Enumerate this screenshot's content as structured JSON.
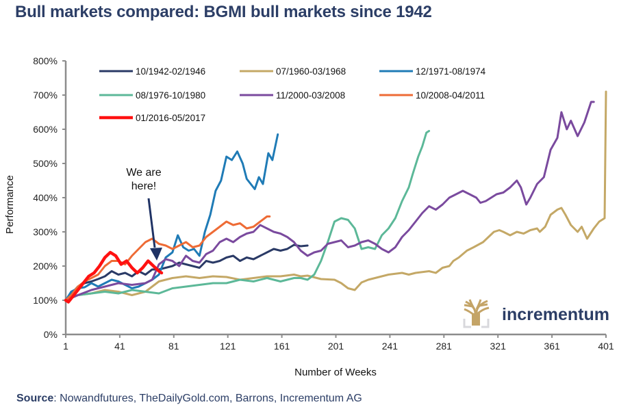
{
  "header": {
    "title": "Bull markets compared: BGMI bull markets since 1942"
  },
  "source": {
    "label": "Source",
    "text": ": Nowandfutures, TheDailyGold.com, Barrons, Incrementum AG"
  },
  "logo": {
    "text": "incrementum",
    "icon": "tree-icon",
    "color": "#c4a467"
  },
  "annotation": {
    "line1": "We are",
    "line2": "here!",
    "arrow_color": "#1f3264",
    "points_to_week": 68,
    "points_to_value": 205
  },
  "chart_data": {
    "type": "line",
    "title": "Bull markets compared: BGMI bull markets since 1942",
    "xlabel": "Number of Weeks",
    "ylabel": "Performance",
    "xlim": [
      1,
      401
    ],
    "ylim": [
      0,
      800
    ],
    "x_ticks": [
      1,
      41,
      81,
      121,
      161,
      201,
      241,
      281,
      321,
      361,
      401
    ],
    "y_ticks": [
      0,
      100,
      200,
      300,
      400,
      500,
      600,
      700,
      800
    ],
    "y_tick_labels": [
      "0%",
      "100%",
      "200%",
      "300%",
      "400%",
      "500%",
      "600%",
      "700%",
      "800%"
    ],
    "grid": false,
    "legend": "top-left",
    "series": [
      {
        "name": "10/1942-02/1946",
        "color": "#2a3a66",
        "points": [
          [
            1,
            100
          ],
          [
            5,
            118
          ],
          [
            10,
            140
          ],
          [
            15,
            150
          ],
          [
            20,
            155
          ],
          [
            25,
            162
          ],
          [
            30,
            170
          ],
          [
            35,
            185
          ],
          [
            40,
            175
          ],
          [
            45,
            180
          ],
          [
            50,
            170
          ],
          [
            55,
            185
          ],
          [
            60,
            175
          ],
          [
            65,
            190
          ],
          [
            70,
            190
          ],
          [
            75,
            195
          ],
          [
            80,
            200
          ],
          [
            85,
            210
          ],
          [
            90,
            205
          ],
          [
            95,
            200
          ],
          [
            100,
            195
          ],
          [
            105,
            215
          ],
          [
            110,
            210
          ],
          [
            115,
            215
          ],
          [
            120,
            225
          ],
          [
            125,
            230
          ],
          [
            130,
            215
          ],
          [
            135,
            225
          ],
          [
            140,
            220
          ],
          [
            145,
            230
          ],
          [
            150,
            240
          ],
          [
            155,
            250
          ],
          [
            160,
            245
          ],
          [
            165,
            250
          ],
          [
            170,
            262
          ],
          [
            175,
            258
          ],
          [
            180,
            260
          ]
        ]
      },
      {
        "name": "07/1960-03/1968",
        "color": "#c4a866",
        "points": [
          [
            1,
            100
          ],
          [
            10,
            115
          ],
          [
            20,
            120
          ],
          [
            30,
            130
          ],
          [
            40,
            125
          ],
          [
            50,
            115
          ],
          [
            60,
            125
          ],
          [
            70,
            155
          ],
          [
            80,
            165
          ],
          [
            90,
            170
          ],
          [
            100,
            165
          ],
          [
            110,
            170
          ],
          [
            120,
            168
          ],
          [
            130,
            160
          ],
          [
            140,
            165
          ],
          [
            150,
            170
          ],
          [
            160,
            170
          ],
          [
            170,
            175
          ],
          [
            175,
            170
          ],
          [
            180,
            172
          ],
          [
            190,
            162
          ],
          [
            200,
            160
          ],
          [
            205,
            150
          ],
          [
            210,
            135
          ],
          [
            215,
            130
          ],
          [
            220,
            152
          ],
          [
            225,
            160
          ],
          [
            230,
            165
          ],
          [
            240,
            175
          ],
          [
            250,
            180
          ],
          [
            255,
            175
          ],
          [
            260,
            180
          ],
          [
            270,
            185
          ],
          [
            275,
            180
          ],
          [
            280,
            195
          ],
          [
            285,
            200
          ],
          [
            288,
            215
          ],
          [
            292,
            225
          ],
          [
            298,
            245
          ],
          [
            303,
            255
          ],
          [
            310,
            270
          ],
          [
            318,
            300
          ],
          [
            322,
            305
          ],
          [
            325,
            300
          ],
          [
            330,
            290
          ],
          [
            335,
            300
          ],
          [
            340,
            295
          ],
          [
            345,
            305
          ],
          [
            350,
            310
          ],
          [
            352,
            300
          ],
          [
            356,
            315
          ],
          [
            360,
            350
          ],
          [
            365,
            365
          ],
          [
            368,
            370
          ],
          [
            371,
            350
          ],
          [
            375,
            320
          ],
          [
            380,
            300
          ],
          [
            383,
            315
          ],
          [
            387,
            280
          ],
          [
            392,
            310
          ],
          [
            396,
            330
          ],
          [
            400,
            340
          ],
          [
            401,
            710
          ]
        ]
      },
      {
        "name": "12/1971-08/1974",
        "color": "#1f7bb6",
        "points": [
          [
            1,
            100
          ],
          [
            5,
            125
          ],
          [
            10,
            135
          ],
          [
            15,
            138
          ],
          [
            20,
            150
          ],
          [
            25,
            140
          ],
          [
            30,
            150
          ],
          [
            35,
            160
          ],
          [
            40,
            155
          ],
          [
            45,
            145
          ],
          [
            50,
            135
          ],
          [
            55,
            140
          ],
          [
            60,
            150
          ],
          [
            65,
            160
          ],
          [
            70,
            175
          ],
          [
            75,
            225
          ],
          [
            80,
            240
          ],
          [
            84,
            290
          ],
          [
            88,
            255
          ],
          [
            92,
            245
          ],
          [
            96,
            250
          ],
          [
            100,
            230
          ],
          [
            104,
            300
          ],
          [
            108,
            350
          ],
          [
            112,
            420
          ],
          [
            116,
            450
          ],
          [
            120,
            520
          ],
          [
            124,
            510
          ],
          [
            128,
            535
          ],
          [
            132,
            500
          ],
          [
            135,
            455
          ],
          [
            138,
            440
          ],
          [
            141,
            425
          ],
          [
            144,
            460
          ],
          [
            147,
            440
          ],
          [
            151,
            530
          ],
          [
            154,
            510
          ],
          [
            158,
            585
          ]
        ]
      },
      {
        "name": "08/1976-10/1980",
        "color": "#5cb898",
        "points": [
          [
            1,
            100
          ],
          [
            10,
            115
          ],
          [
            20,
            120
          ],
          [
            30,
            125
          ],
          [
            40,
            120
          ],
          [
            50,
            130
          ],
          [
            60,
            125
          ],
          [
            70,
            120
          ],
          [
            80,
            135
          ],
          [
            90,
            140
          ],
          [
            100,
            145
          ],
          [
            110,
            150
          ],
          [
            120,
            150
          ],
          [
            130,
            160
          ],
          [
            140,
            155
          ],
          [
            150,
            165
          ],
          [
            160,
            155
          ],
          [
            170,
            165
          ],
          [
            175,
            165
          ],
          [
            180,
            160
          ],
          [
            185,
            175
          ],
          [
            190,
            215
          ],
          [
            195,
            270
          ],
          [
            200,
            330
          ],
          [
            205,
            340
          ],
          [
            210,
            335
          ],
          [
            215,
            310
          ],
          [
            220,
            250
          ],
          [
            225,
            255
          ],
          [
            230,
            250
          ],
          [
            235,
            290
          ],
          [
            240,
            310
          ],
          [
            245,
            340
          ],
          [
            250,
            390
          ],
          [
            255,
            430
          ],
          [
            258,
            470
          ],
          [
            262,
            520
          ],
          [
            265,
            550
          ],
          [
            268,
            590
          ],
          [
            270,
            595
          ]
        ]
      },
      {
        "name": "11/2000-03/2008",
        "color": "#7a4a9e",
        "points": [
          [
            1,
            100
          ],
          [
            10,
            115
          ],
          [
            20,
            130
          ],
          [
            30,
            140
          ],
          [
            40,
            150
          ],
          [
            50,
            145
          ],
          [
            60,
            150
          ],
          [
            65,
            160
          ],
          [
            70,
            205
          ],
          [
            75,
            220
          ],
          [
            80,
            215
          ],
          [
            85,
            200
          ],
          [
            90,
            230
          ],
          [
            95,
            215
          ],
          [
            100,
            210
          ],
          [
            105,
            235
          ],
          [
            110,
            245
          ],
          [
            115,
            270
          ],
          [
            120,
            280
          ],
          [
            125,
            270
          ],
          [
            130,
            285
          ],
          [
            135,
            295
          ],
          [
            140,
            300
          ],
          [
            145,
            320
          ],
          [
            150,
            310
          ],
          [
            155,
            300
          ],
          [
            160,
            295
          ],
          [
            165,
            285
          ],
          [
            170,
            270
          ],
          [
            175,
            245
          ],
          [
            180,
            230
          ],
          [
            185,
            240
          ],
          [
            190,
            245
          ],
          [
            195,
            265
          ],
          [
            200,
            270
          ],
          [
            205,
            275
          ],
          [
            210,
            255
          ],
          [
            215,
            260
          ],
          [
            220,
            270
          ],
          [
            225,
            275
          ],
          [
            230,
            265
          ],
          [
            235,
            250
          ],
          [
            240,
            240
          ],
          [
            245,
            255
          ],
          [
            250,
            285
          ],
          [
            255,
            305
          ],
          [
            260,
            330
          ],
          [
            265,
            355
          ],
          [
            270,
            375
          ],
          [
            275,
            365
          ],
          [
            280,
            380
          ],
          [
            285,
            400
          ],
          [
            290,
            410
          ],
          [
            295,
            420
          ],
          [
            300,
            410
          ],
          [
            305,
            400
          ],
          [
            308,
            385
          ],
          [
            312,
            390
          ],
          [
            316,
            400
          ],
          [
            320,
            410
          ],
          [
            325,
            415
          ],
          [
            330,
            430
          ],
          [
            335,
            450
          ],
          [
            338,
            430
          ],
          [
            342,
            380
          ],
          [
            345,
            400
          ],
          [
            350,
            440
          ],
          [
            355,
            460
          ],
          [
            360,
            540
          ],
          [
            365,
            575
          ],
          [
            368,
            650
          ],
          [
            372,
            600
          ],
          [
            375,
            625
          ],
          [
            380,
            580
          ],
          [
            385,
            620
          ],
          [
            390,
            680
          ],
          [
            392,
            680
          ]
        ]
      },
      {
        "name": "10/2008-04/2011",
        "color": "#ee6b35",
        "points": [
          [
            1,
            100
          ],
          [
            5,
            115
          ],
          [
            10,
            140
          ],
          [
            15,
            155
          ],
          [
            20,
            165
          ],
          [
            25,
            175
          ],
          [
            30,
            200
          ],
          [
            35,
            215
          ],
          [
            40,
            215
          ],
          [
            45,
            205
          ],
          [
            50,
            230
          ],
          [
            55,
            250
          ],
          [
            60,
            270
          ],
          [
            65,
            280
          ],
          [
            70,
            265
          ],
          [
            75,
            260
          ],
          [
            80,
            250
          ],
          [
            85,
            260
          ],
          [
            90,
            270
          ],
          [
            95,
            255
          ],
          [
            100,
            260
          ],
          [
            105,
            285
          ],
          [
            110,
            300
          ],
          [
            115,
            315
          ],
          [
            120,
            330
          ],
          [
            125,
            320
          ],
          [
            130,
            325
          ],
          [
            135,
            310
          ],
          [
            140,
            315
          ],
          [
            145,
            330
          ],
          [
            150,
            345
          ],
          [
            152,
            345
          ]
        ]
      },
      {
        "name": "01/2016-05/2017",
        "color": "#ff1111",
        "points": [
          [
            1,
            100
          ],
          [
            3,
            95
          ],
          [
            6,
            110
          ],
          [
            10,
            130
          ],
          [
            14,
            150
          ],
          [
            18,
            170
          ],
          [
            22,
            180
          ],
          [
            26,
            200
          ],
          [
            30,
            225
          ],
          [
            34,
            240
          ],
          [
            38,
            230
          ],
          [
            42,
            205
          ],
          [
            46,
            215
          ],
          [
            50,
            195
          ],
          [
            54,
            180
          ],
          [
            58,
            195
          ],
          [
            62,
            215
          ],
          [
            66,
            200
          ],
          [
            70,
            185
          ],
          [
            72,
            180
          ]
        ]
      }
    ]
  }
}
